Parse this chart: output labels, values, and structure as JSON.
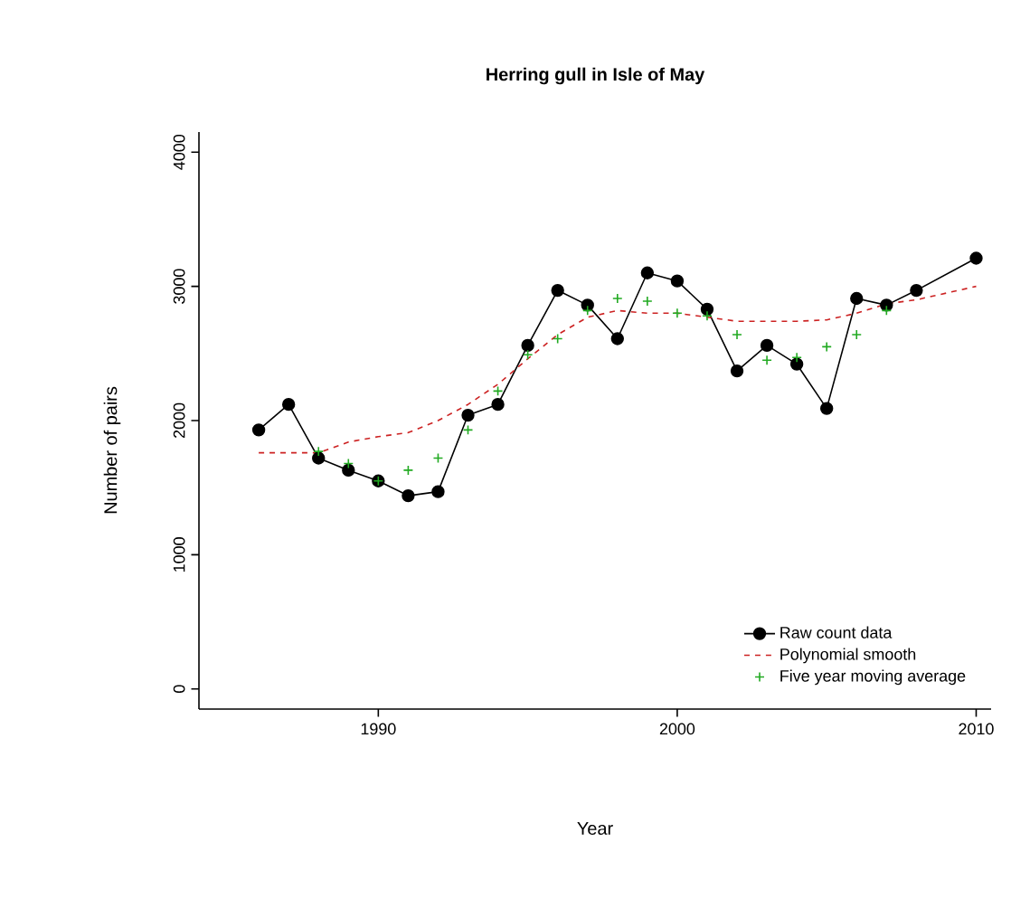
{
  "chart_data": {
    "type": "line",
    "title": "Herring gull in Isle of May",
    "xlabel": "Year",
    "ylabel": "Number of pairs",
    "xlim": [
      1984,
      2010.5
    ],
    "ylim": [
      -150,
      4150
    ],
    "xticks": [
      1990,
      2000,
      2010
    ],
    "yticks": [
      0,
      1000,
      2000,
      3000,
      4000
    ],
    "legend": "bottom right",
    "series": [
      {
        "name": "Raw count data",
        "color": "#000000",
        "marker": "circle",
        "line_style": "solid",
        "x": [
          1986,
          1987,
          1988,
          1989,
          1990,
          1991,
          1992,
          1993,
          1994,
          1995,
          1996,
          1997,
          1998,
          1999,
          2000,
          2001,
          2002,
          2003,
          2004,
          2005,
          2006,
          2007,
          2008,
          2010
        ],
        "values": [
          1930,
          2120,
          1720,
          1630,
          1550,
          1440,
          1470,
          2040,
          2120,
          2560,
          2970,
          2860,
          2610,
          3100,
          3040,
          2830,
          2370,
          2560,
          2420,
          2090,
          2910,
          2860,
          2970,
          3210
        ]
      },
      {
        "name": "Polynomial smooth",
        "color": "#cc2222",
        "marker": "none",
        "line_style": "dashed",
        "x": [
          1986,
          1988,
          1989,
          1990,
          1991,
          1992,
          1993,
          1994,
          1995,
          1996,
          1997,
          1998,
          1999,
          2000,
          2001,
          2002,
          2003,
          2004,
          2005,
          2006,
          2007,
          2008,
          2009,
          2010
        ],
        "values": [
          1760,
          1760,
          1840,
          1880,
          1910,
          2000,
          2120,
          2270,
          2460,
          2640,
          2770,
          2820,
          2800,
          2800,
          2770,
          2740,
          2740,
          2740,
          2750,
          2800,
          2870,
          2900,
          2950,
          3000
        ]
      },
      {
        "name": "Five year moving average",
        "type": "scatter",
        "color": "#22aa22",
        "marker": "cross",
        "x": [
          1988,
          1989,
          1990,
          1991,
          1992,
          1993,
          1994,
          1995,
          1996,
          1997,
          1998,
          1999,
          2000,
          2001,
          2002,
          2003,
          2004,
          2005,
          2006,
          2007
        ],
        "values": [
          1770,
          1680,
          1550,
          1630,
          1720,
          1930,
          2220,
          2490,
          2610,
          2820,
          2910,
          2890,
          2800,
          2780,
          2640,
          2450,
          2470,
          2550,
          2640,
          2820
        ]
      }
    ]
  }
}
